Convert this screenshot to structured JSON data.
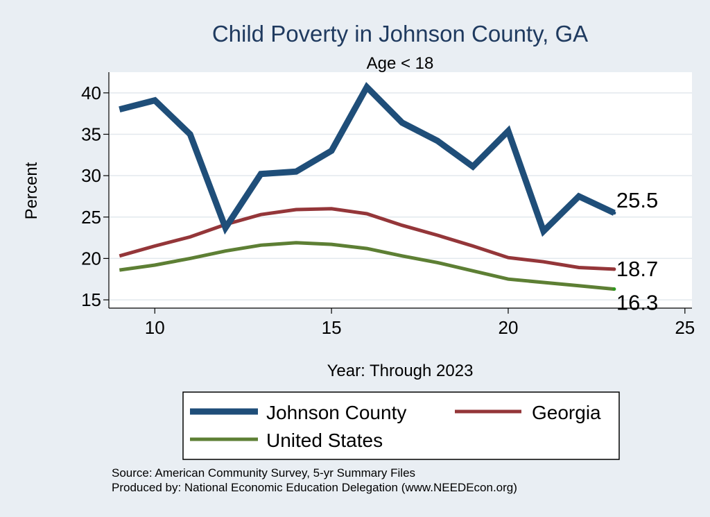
{
  "chart_data": {
    "type": "line",
    "title": "Child Poverty in Johnson County, GA",
    "subtitle": "Age < 18",
    "xlabel": "Year: Through 2023",
    "ylabel": "Percent",
    "xlim": [
      8.7,
      25.2
    ],
    "ylim": [
      14.0,
      42.5
    ],
    "xticks": [
      10,
      15,
      20,
      25
    ],
    "yticks": [
      15,
      20,
      25,
      30,
      35,
      40
    ],
    "x": [
      9,
      10,
      11,
      12,
      13,
      14,
      15,
      16,
      17,
      18,
      19,
      20,
      21,
      22,
      23
    ],
    "series": [
      {
        "name": "Johnson County",
        "color": "#1f4e79",
        "values": [
          38.0,
          39.1,
          35.0,
          23.7,
          30.2,
          30.5,
          33.0,
          40.7,
          36.4,
          34.2,
          31.1,
          35.4,
          23.3,
          27.5,
          25.5
        ],
        "end_label": "25.5"
      },
      {
        "name": "Georgia",
        "color": "#943639",
        "values": [
          20.3,
          21.5,
          22.6,
          24.1,
          25.3,
          25.9,
          26.0,
          25.4,
          24.0,
          22.8,
          21.5,
          20.1,
          19.6,
          18.9,
          18.7
        ],
        "end_label": "18.7"
      },
      {
        "name": "United States",
        "color": "#5d7f34",
        "values": [
          18.6,
          19.2,
          20.0,
          20.9,
          21.6,
          21.9,
          21.7,
          21.2,
          20.3,
          19.5,
          18.5,
          17.5,
          17.1,
          16.7,
          16.3
        ],
        "end_label": "16.3"
      }
    ],
    "legend": {
      "position": "bottom",
      "entries": [
        "Johnson County",
        "Georgia",
        "United States"
      ]
    },
    "grid": true,
    "source_lines": [
      "Source: American Community Survey, 5-yr Summary Files",
      "Produced by: National Economic Education Delegation (www.NEEDEcon.org)"
    ]
  },
  "colors": {
    "outer_background": "#e9eef3",
    "plot_background": "#ffffff",
    "grid": "#e2e8ed",
    "title": "#1f3a5f"
  }
}
